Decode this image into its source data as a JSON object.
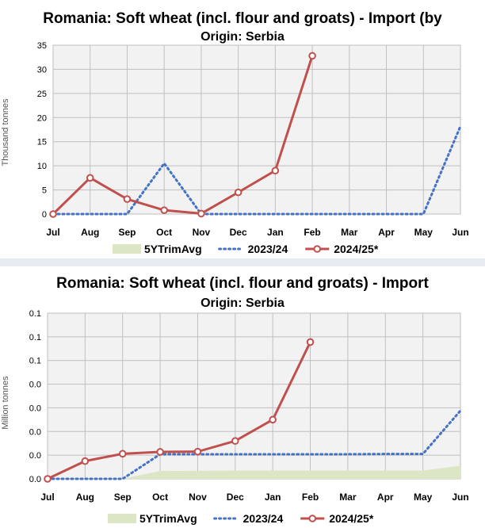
{
  "chart_data": [
    {
      "type": "line",
      "title": "Romania: Soft wheat (incl. flour and groats) - Import  (by",
      "subtitle": "Origin: Serbia",
      "ylabel": "Thousand tonnes",
      "xlabel": "",
      "categories": [
        "Jul",
        "Aug",
        "Sep",
        "Oct",
        "Nov",
        "Dec",
        "Jan",
        "Feb",
        "Mar",
        "Apr",
        "May",
        "Jun"
      ],
      "ylim": [
        0,
        35
      ],
      "yticks": [
        0,
        5,
        10,
        15,
        20,
        25,
        30,
        35
      ],
      "ytick_labels": [
        "0",
        "5",
        "10",
        "15",
        "20",
        "25",
        "30",
        "35"
      ],
      "grid": true,
      "legend_position": "bottom",
      "series": [
        {
          "name": "5YTrimAvg",
          "style": "area",
          "color": "#dce6c4",
          "values": [
            0,
            0,
            0,
            0,
            0,
            0,
            0,
            0,
            0,
            0,
            0,
            0
          ]
        },
        {
          "name": "2023/24",
          "style": "dotted",
          "color": "#4472c4",
          "values": [
            0,
            0,
            0,
            10.5,
            0,
            0,
            0,
            0,
            0,
            0,
            0,
            18.2
          ]
        },
        {
          "name": "2024/25*",
          "style": "solid-markers",
          "color": "#c0504d",
          "values": [
            0,
            7.5,
            3.1,
            0.8,
            0.1,
            4.5,
            9,
            32.8,
            null,
            null,
            null,
            null
          ]
        }
      ]
    },
    {
      "type": "line",
      "title": "Romania: Soft wheat (incl. flour and groats) - Import",
      "subtitle": "Origin: Serbia",
      "ylabel": "Million tonnes",
      "xlabel": "",
      "categories": [
        "Jul",
        "Aug",
        "Sep",
        "Oct",
        "Nov",
        "Dec",
        "Jan",
        "Feb",
        "Mar",
        "Apr",
        "May",
        "Jun"
      ],
      "ylim": [
        0,
        0.07
      ],
      "yticks": [
        0,
        0.01,
        0.02,
        0.03,
        0.04,
        0.05,
        0.06,
        0.07
      ],
      "ytick_labels": [
        "0.0",
        "0.0",
        "0.0",
        "0.0",
        "0.0",
        "0.1",
        "0.1",
        "0.1"
      ],
      "grid": true,
      "legend_position": "bottom",
      "series": [
        {
          "name": "5YTrimAvg",
          "style": "area",
          "color": "#dce6c4",
          "values": [
            0,
            0,
            0,
            0.0033,
            0.0034,
            0.0035,
            0.0035,
            0.0035,
            0.0035,
            0.0035,
            0.0035,
            0.0055
          ]
        },
        {
          "name": "2023/24",
          "style": "dotted",
          "color": "#4472c4",
          "values": [
            0,
            0,
            0,
            0.0104,
            0.0104,
            0.0104,
            0.0104,
            0.0104,
            0.0104,
            0.0105,
            0.0105,
            0.0288
          ]
        },
        {
          "name": "2024/25*",
          "style": "solid-markers",
          "color": "#c0504d",
          "values": [
            0,
            0.0075,
            0.0106,
            0.0114,
            0.0115,
            0.016,
            0.025,
            0.0578,
            null,
            null,
            null,
            null
          ]
        }
      ]
    }
  ]
}
